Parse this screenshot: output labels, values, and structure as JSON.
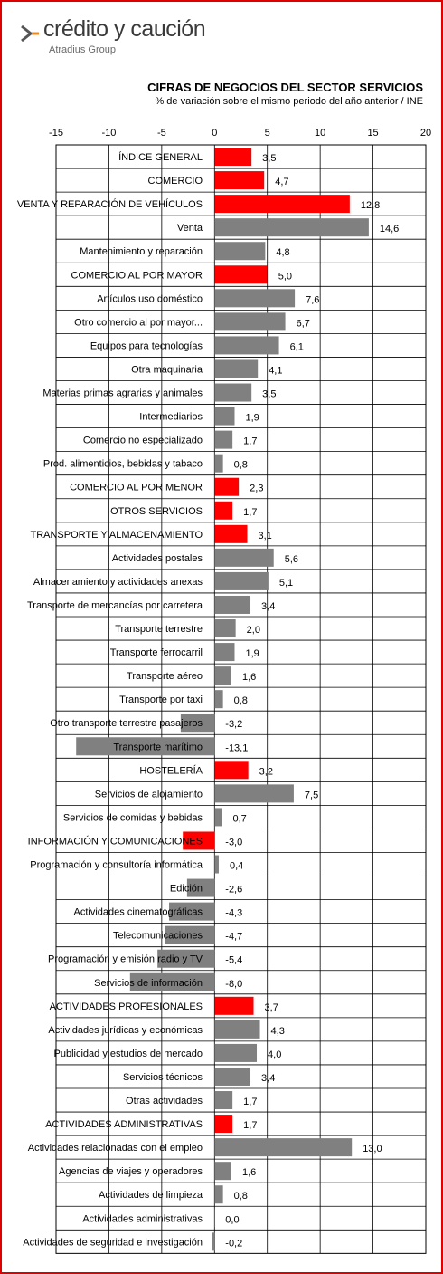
{
  "brand": {
    "name": "crédito y caución",
    "group": "Atradius Group",
    "colors": {
      "mark_orange": "#f08a1c",
      "mark_grey": "#555555",
      "frame": "#e00000"
    }
  },
  "chart_data": {
    "type": "bar",
    "orientation": "horizontal",
    "title": "CIFRAS DE NEGOCIOS DEL SECTOR SERVICIOS",
    "subtitle": "% de variación sobre el mismo periodo del año anterior / INE",
    "xlim": [
      -15,
      20
    ],
    "xticks": [
      -15,
      -10,
      -5,
      0,
      5,
      10,
      15,
      20
    ],
    "grid": true,
    "colors": {
      "highlight": "#ff0000",
      "normal": "#808080"
    },
    "categories": [
      "ÍNDICE GENERAL",
      "COMERCIO",
      "VENTA Y REPARACIÓN DE VEHÍCULOS",
      "Venta",
      "Mantenimiento y reparación",
      "COMERCIO AL POR MAYOR",
      "Artículos uso doméstico",
      "Otro comercio al por mayor...",
      "Equipos para tecnologías",
      "Otra maquinaria",
      "Materias primas agrarias  y animales",
      "Intermediarios",
      "Comercio no especializado",
      "Prod. alimenticios, bebidas y tabaco",
      "COMERCIO AL POR MENOR",
      "OTROS SERVICIOS",
      "TRANSPORTE Y ALMACENAMIENTO",
      "Actividades postales",
      "Almacenamiento y actividades  anexas",
      "Transporte de mercancías por carretera",
      "Transporte terrestre",
      "Transporte ferrocarril",
      "Transporte aéreo",
      "Transporte por taxi",
      "Otro transporte terrestre pasajeros",
      "Transporte marítimo",
      "HOSTELERÍA",
      "Servicios de alojamiento",
      "Servicios de comidas y bebidas",
      "INFORMACIÓN Y COMUNICACIONES",
      "Programación y consultoría informática",
      "Edición",
      "Actividades cinematográficas",
      "Telecomunicaciones",
      "Programación y emisión radio y TV",
      "Servicios de información",
      "ACTIVIDADES PROFESIONALES",
      "Actividades jurídicas  y económicas",
      "Publicidad  y estudios de mercado",
      "Servicios técnicos",
      "Otras actividades",
      "ACTIVIDADES ADMINISTRATIVAS",
      "Actividades relacionadas  con el empleo",
      "Agencias de viajes y operadores",
      "Actividades de limpieza",
      "Actividades administrativas",
      "Actividades de seguridad e investigación"
    ],
    "values": [
      3.5,
      4.7,
      12.8,
      14.6,
      4.8,
      5.0,
      7.6,
      6.7,
      6.1,
      4.1,
      3.5,
      1.9,
      1.7,
      0.8,
      2.3,
      1.7,
      3.1,
      5.6,
      5.1,
      3.4,
      2.0,
      1.9,
      1.6,
      0.8,
      -3.2,
      -13.1,
      3.2,
      7.5,
      0.7,
      -3.0,
      0.4,
      -2.6,
      -4.3,
      -4.7,
      -5.4,
      -8.0,
      3.7,
      4.3,
      4.0,
      3.4,
      1.7,
      1.7,
      13.0,
      1.6,
      0.8,
      0.0,
      -0.2
    ],
    "labels": [
      "3,5",
      "4,7",
      "12,8",
      "14,6",
      "4,8",
      "5,0",
      "7,6",
      "6,7",
      "6,1",
      "4,1",
      "3,5",
      "1,9",
      "1,7",
      "0,8",
      "2,3",
      "1,7",
      "3,1",
      "5,6",
      "5,1",
      "3,4",
      "2,0",
      "1,9",
      "1,6",
      "0,8",
      "-3,2",
      "-13,1",
      "3,2",
      "7,5",
      "0,7",
      "-3,0",
      "0,4",
      "-2,6",
      "-4,3",
      "-4,7",
      "-5,4",
      "-8,0",
      "3,7",
      "4,3",
      "4,0",
      "3,4",
      "1,7",
      "1,7",
      "13,0",
      "1,6",
      "0,8",
      "0,0",
      "-0,2"
    ],
    "highlight": [
      true,
      true,
      true,
      false,
      false,
      true,
      false,
      false,
      false,
      false,
      false,
      false,
      false,
      false,
      true,
      true,
      true,
      false,
      false,
      false,
      false,
      false,
      false,
      false,
      false,
      false,
      true,
      false,
      false,
      true,
      false,
      false,
      false,
      false,
      false,
      false,
      true,
      false,
      false,
      false,
      false,
      true,
      false,
      false,
      false,
      false,
      false
    ]
  }
}
